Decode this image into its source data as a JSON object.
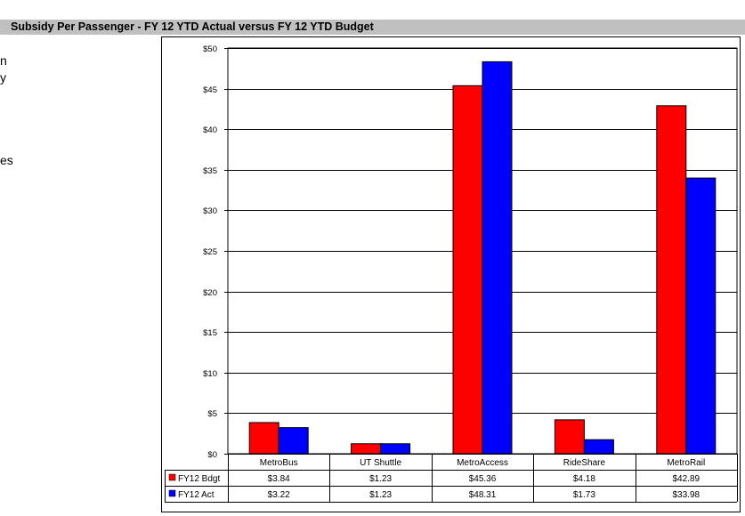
{
  "fragments": [
    "n",
    "y",
    "es"
  ],
  "chart_data": {
    "type": "bar",
    "title": "Subsidy Per Passenger - FY 12 YTD Actual versus FY 12 YTD Budget",
    "categories": [
      "MetroBus",
      "UT Shuttle",
      "MetroAccess",
      "RideShare",
      "MetroRail"
    ],
    "series": [
      {
        "name": "FY12 Bdgt",
        "color": "#ff0000",
        "values": [
          3.84,
          1.23,
          45.36,
          4.18,
          42.89
        ],
        "labels": [
          "$3.84",
          "$1.23",
          "$45.36",
          "$4.18",
          "$42.89"
        ]
      },
      {
        "name": "FY12 Act",
        "color": "#0000ff",
        "values": [
          3.22,
          1.23,
          48.31,
          1.73,
          33.98
        ],
        "labels": [
          "$3.22",
          "$1.23",
          "$48.31",
          "$1.73",
          "$33.98"
        ]
      }
    ],
    "ylim": [
      0,
      50
    ],
    "yticks": [
      0,
      5,
      10,
      15,
      20,
      25,
      30,
      35,
      40,
      45,
      50
    ],
    "ytick_labels": [
      "$0",
      "$5",
      "$10",
      "$15",
      "$20",
      "$25",
      "$30",
      "$35",
      "$40",
      "$45",
      "$50"
    ],
    "grid": true,
    "legend": "data-table"
  }
}
